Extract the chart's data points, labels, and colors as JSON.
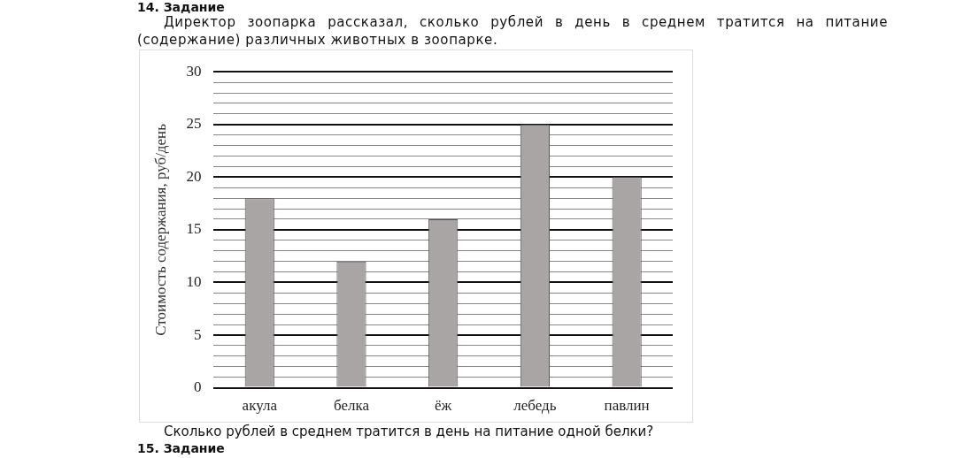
{
  "chart_data": {
    "type": "bar",
    "title": "Директор зоопарка рассказал, сколько рублей в день в среднем тратится на питание (содержание) различных животных в зоопарке.",
    "ylabel": "Стоимость содержания, руб/день",
    "categories": [
      "акула",
      "белка",
      "ёж",
      "лебедь",
      "павлин"
    ],
    "values": [
      18,
      12,
      16,
      25,
      20
    ],
    "color": "#a9a5a5",
    "ylim": [
      0,
      30
    ],
    "yticks": [
      0,
      {
        "value": 1,
        "label": null
      },
      {
        "value": 2,
        "label": null
      },
      {
        "value": 3,
        "label": null
      },
      {
        "value": 4,
        "label": null
      },
      5,
      {
        "value": 6,
        "label": null
      },
      {
        "value": 7,
        "label": null
      },
      {
        "value": 8,
        "label": null
      },
      {
        "value": 9,
        "label": null
      },
      10,
      {
        "value": 11,
        "label": null
      },
      {
        "value": 12,
        "label": null
      },
      {
        "value": 13,
        "label": null
      },
      {
        "value": 14,
        "label": null
      },
      15,
      {
        "value": 16,
        "label": null
      },
      {
        "value": 17,
        "label": null
      },
      {
        "value": 18,
        "label": null
      },
      {
        "value": 19,
        "label": null
      },
      20,
      {
        "value": 21,
        "label": null
      },
      {
        "value": 22,
        "label": null
      },
      {
        "value": 23,
        "label": null
      },
      {
        "value": 24,
        "label": null
      },
      25,
      {
        "value": 26,
        "label": null
      },
      {
        "value": 27,
        "label": null
      },
      {
        "value": 28,
        "label": null
      },
      {
        "value": 29,
        "label": null
      },
      30
    ],
    "grid": "y",
    "legend": false,
    "annotations": [
      "14. Задание",
      "Сколько рублей в среднем тратится в день на питание одной белки?",
      "15. Задание"
    ]
  }
}
